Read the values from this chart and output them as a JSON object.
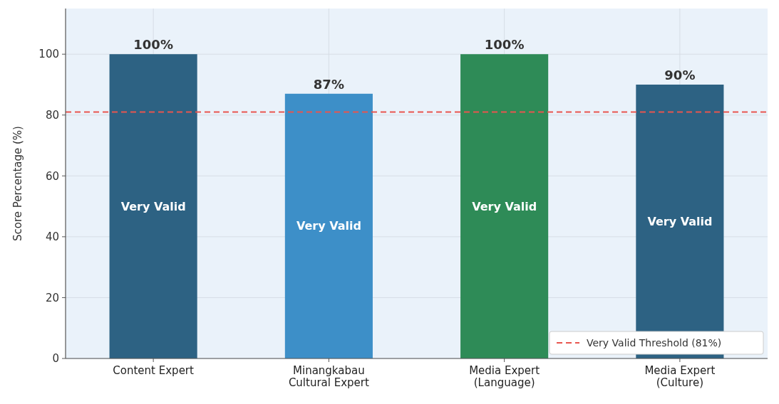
{
  "chart_data": {
    "type": "bar",
    "ylabel": "Score Percentage (%)",
    "categories": [
      "Content Expert",
      "Minangkabau\nCultural Expert",
      "Media Expert\n(Language)",
      "Media Expert\n(Culture)"
    ],
    "values": [
      100,
      87,
      100,
      90
    ],
    "colors": [
      "#2d6283",
      "#3d8fc8",
      "#2e8b57",
      "#2d6283"
    ],
    "value_labels": [
      "100%",
      "87%",
      "100%",
      "90%"
    ],
    "annotations": [
      "Very Valid",
      "Very Valid",
      "Very Valid",
      "Very Valid"
    ],
    "ref_lines": [
      {
        "axis": "y",
        "value": 81,
        "label": "Very Valid Threshold (81%)",
        "color": "#e8554e",
        "line_style": "dashed"
      }
    ],
    "ylim": [
      0,
      115
    ],
    "yticks": [
      0,
      20,
      40,
      60,
      80,
      100
    ],
    "grid": true,
    "legend": "bottom right"
  }
}
